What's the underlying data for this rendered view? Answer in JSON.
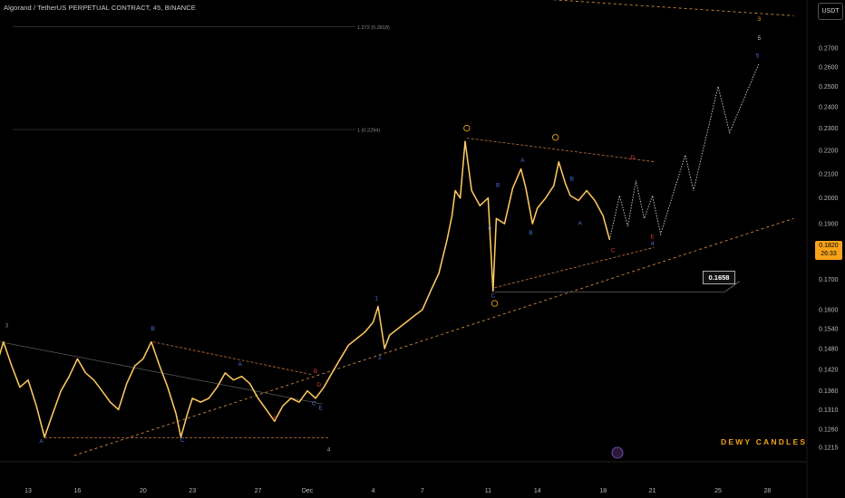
{
  "header": {
    "title": "Algorand / TetherUS PERPETUAL CONTRACT, 45, BINANCE",
    "currency_button": "USDT"
  },
  "last_price": {
    "value": "0.1820",
    "countdown": "26:33"
  },
  "callout_price": "0.1658",
  "watermark": "DEWY CANDLES",
  "colors": {
    "candle": "#f5b642",
    "wave_blue": "#4a6ee0",
    "wave_orange": "#f0a21b",
    "wave_red": "#d23a3a",
    "channel": "#c8783a"
  },
  "chart_data": {
    "type": "line",
    "title": "Algorand / TetherUS PERPETUAL CONTRACT, 45, BINANCE",
    "x_ticks": [
      "13",
      "16",
      "20",
      "23",
      "27",
      "Dec",
      "4",
      "7",
      "11",
      "14",
      "18",
      "21",
      "25",
      "28"
    ],
    "x_tick_days": [
      13,
      16,
      20,
      23,
      27,
      30,
      34,
      37,
      41,
      44,
      48,
      51,
      55,
      58
    ],
    "y_ticks": [
      "0.2700",
      "0.2600",
      "0.2500",
      "0.2400",
      "0.2300",
      "0.2200",
      "0.2100",
      "0.2000",
      "0.1900",
      "0.1700",
      "0.1600",
      "0.1540",
      "0.1480",
      "0.1420",
      "0.1360",
      "0.1310",
      "0.1260",
      "0.1215"
    ],
    "scale": "log",
    "fib_levels": [
      {
        "label": "1.272 (0.2818)",
        "value": 0.2818
      },
      {
        "label": "1 (0.2294)",
        "value": 0.2294
      }
    ],
    "price_path": [
      [
        10.0,
        0.131
      ],
      [
        10.5,
        0.137
      ],
      [
        11.0,
        0.142
      ],
      [
        11.5,
        0.15
      ],
      [
        12.0,
        0.143
      ],
      [
        12.5,
        0.137
      ],
      [
        13.0,
        0.139
      ],
      [
        13.5,
        0.132
      ],
      [
        14.0,
        0.124
      ],
      [
        14.5,
        0.13
      ],
      [
        15.0,
        0.136
      ],
      [
        15.5,
        0.14
      ],
      [
        16.0,
        0.145
      ],
      [
        16.5,
        0.141
      ],
      [
        17.0,
        0.139
      ],
      [
        17.5,
        0.136
      ],
      [
        18.0,
        0.133
      ],
      [
        18.5,
        0.131
      ],
      [
        19.0,
        0.138
      ],
      [
        19.5,
        0.143
      ],
      [
        20.0,
        0.145
      ],
      [
        20.5,
        0.15
      ],
      [
        21.0,
        0.143
      ],
      [
        21.5,
        0.137
      ],
      [
        22.0,
        0.13
      ],
      [
        22.3,
        0.124
      ],
      [
        22.7,
        0.13
      ],
      [
        23.0,
        0.134
      ],
      [
        23.5,
        0.133
      ],
      [
        24.0,
        0.134
      ],
      [
        24.5,
        0.137
      ],
      [
        25.0,
        0.141
      ],
      [
        25.5,
        0.139
      ],
      [
        26.0,
        0.14
      ],
      [
        26.5,
        0.138
      ],
      [
        27.0,
        0.134
      ],
      [
        27.5,
        0.131
      ],
      [
        28.0,
        0.128
      ],
      [
        28.5,
        0.132
      ],
      [
        29.0,
        0.134
      ],
      [
        29.5,
        0.133
      ],
      [
        30.0,
        0.136
      ],
      [
        30.5,
        0.134
      ],
      [
        31.0,
        0.137
      ],
      [
        31.5,
        0.141
      ],
      [
        32.0,
        0.145
      ],
      [
        32.5,
        0.149
      ],
      [
        33.0,
        0.151
      ],
      [
        33.5,
        0.153
      ],
      [
        34.0,
        0.156
      ],
      [
        34.3,
        0.161
      ],
      [
        34.7,
        0.148
      ],
      [
        35.0,
        0.152
      ],
      [
        35.5,
        0.154
      ],
      [
        36.0,
        0.156
      ],
      [
        36.5,
        0.158
      ],
      [
        37.0,
        0.16
      ],
      [
        37.5,
        0.166
      ],
      [
        38.0,
        0.172
      ],
      [
        38.5,
        0.184
      ],
      [
        38.8,
        0.193
      ],
      [
        39.0,
        0.203
      ],
      [
        39.3,
        0.2
      ],
      [
        39.6,
        0.224
      ],
      [
        40.0,
        0.203
      ],
      [
        40.5,
        0.197
      ],
      [
        41.0,
        0.2
      ],
      [
        41.3,
        0.166
      ],
      [
        41.5,
        0.192
      ],
      [
        42.0,
        0.19
      ],
      [
        42.5,
        0.204
      ],
      [
        43.0,
        0.212
      ],
      [
        43.3,
        0.204
      ],
      [
        43.7,
        0.19
      ],
      [
        44.0,
        0.196
      ],
      [
        44.5,
        0.2
      ],
      [
        45.0,
        0.205
      ],
      [
        45.3,
        0.215
      ],
      [
        45.7,
        0.206
      ],
      [
        46.0,
        0.201
      ],
      [
        46.5,
        0.199
      ],
      [
        47.0,
        0.203
      ],
      [
        47.5,
        0.199
      ],
      [
        48.0,
        0.193
      ],
      [
        48.4,
        0.184
      ]
    ],
    "projection": [
      [
        48.4,
        0.184
      ],
      [
        49.0,
        0.201
      ],
      [
        49.5,
        0.189
      ],
      [
        50.0,
        0.207
      ],
      [
        50.5,
        0.192
      ],
      [
        51.0,
        0.201
      ],
      [
        51.5,
        0.186
      ],
      [
        53.0,
        0.218
      ],
      [
        53.5,
        0.203
      ],
      [
        55.0,
        0.25
      ],
      [
        55.7,
        0.228
      ],
      [
        57.5,
        0.262
      ]
    ],
    "wave_labels": [
      {
        "text": "3",
        "x": 11.7,
        "y": 0.1545,
        "color": "#888888"
      },
      {
        "text": "A",
        "x": 13.8,
        "y": 0.1225,
        "color": "#4a6ee0"
      },
      {
        "text": "B",
        "x": 20.6,
        "y": 0.1535,
        "color": "#4a6ee0"
      },
      {
        "text": "C",
        "x": 22.4,
        "y": 0.1228,
        "color": "#4a6ee0"
      },
      {
        "text": "A",
        "x": 25.9,
        "y": 0.143,
        "color": "#4a6ee0"
      },
      {
        "text": "A",
        "x": 28.0,
        "y": 0.1285,
        "color": "#d23a3a"
      },
      {
        "text": "B",
        "x": 30.5,
        "y": 0.141,
        "color": "#d23a3a"
      },
      {
        "text": "D",
        "x": 30.7,
        "y": 0.1372,
        "color": "#d23a3a"
      },
      {
        "text": "C",
        "x": 30.4,
        "y": 0.1322,
        "color": "#4a6ee0"
      },
      {
        "text": "E",
        "x": 30.8,
        "y": 0.131,
        "color": "#4a6ee0"
      },
      {
        "text": "4",
        "x": 31.3,
        "y": 0.1205,
        "color": "#aaaaaa"
      },
      {
        "text": "1",
        "x": 34.2,
        "y": 0.163,
        "color": "#4a6ee0"
      },
      {
        "text": "2",
        "x": 34.4,
        "y": 0.1448,
        "color": "#4a6ee0"
      },
      {
        "text": "B",
        "x": 41.6,
        "y": 0.2045,
        "color": "#4a6ee0"
      },
      {
        "text": "A",
        "x": 41.1,
        "y": 0.188,
        "color": "#4a6ee0"
      },
      {
        "text": "C",
        "x": 41.3,
        "y": 0.164,
        "color": "#4a6ee0"
      },
      {
        "text": "A",
        "x": 43.1,
        "y": 0.215,
        "color": "#4a6ee0"
      },
      {
        "text": "B",
        "x": 43.6,
        "y": 0.186,
        "color": "#4a6ee0"
      },
      {
        "text": "B",
        "x": 46.1,
        "y": 0.207,
        "color": "#4a6ee0"
      },
      {
        "text": "A",
        "x": 46.6,
        "y": 0.1895,
        "color": "#4a6ee0"
      },
      {
        "text": "D",
        "x": 49.8,
        "y": 0.216,
        "color": "#d23a3a"
      },
      {
        "text": "C",
        "x": 48.6,
        "y": 0.1795,
        "color": "#d23a3a"
      },
      {
        "text": "E",
        "x": 51.0,
        "y": 0.1845,
        "color": "#d23a3a"
      },
      {
        "text": "4",
        "x": 51.0,
        "y": 0.182,
        "color": "#4a6ee0"
      },
      {
        "text": "3",
        "x": 57.5,
        "y": 0.285,
        "color": "#f0a21b"
      },
      {
        "text": "5",
        "x": 57.5,
        "y": 0.2745,
        "color": "#cccccc"
      },
      {
        "text": "5",
        "x": 57.4,
        "y": 0.265,
        "color": "#4a6ee0"
      }
    ]
  }
}
